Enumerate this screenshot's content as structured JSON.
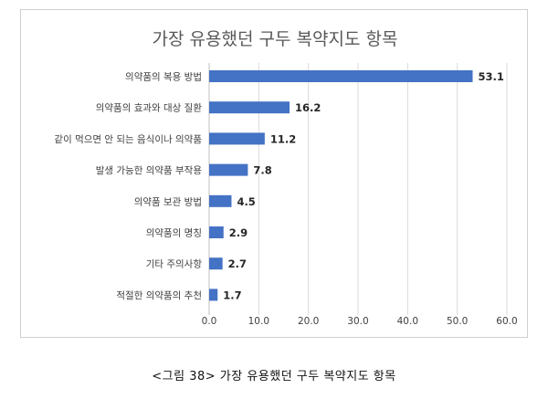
{
  "chart_data": {
    "type": "bar",
    "orientation": "horizontal",
    "title": "가장 유용했던 구두 복약지도 항목",
    "categories": [
      "의약품의 복용 방법",
      "의약품의 효과와 대상 질환",
      "같이 먹으면 안 되는 음식이나 의약품",
      "발생 가능한 의약품 부작용",
      "의약품 보관 방법",
      "의약품의 명칭",
      "기타 주의사항",
      "적절한 의약품의 추천"
    ],
    "values": [
      53.1,
      16.2,
      11.2,
      7.8,
      4.5,
      2.9,
      2.7,
      1.7
    ],
    "value_labels": [
      "53.1",
      "16.2",
      "11.2",
      "7.8",
      "4.5",
      "2.9",
      "2.7",
      "1.7"
    ],
    "xlim": [
      0,
      60
    ],
    "x_ticks": [
      0,
      10,
      20,
      30,
      40,
      50,
      60
    ],
    "x_tick_labels": [
      "0.0",
      "10.0",
      "20.0",
      "30.0",
      "40.0",
      "50.0",
      "60.0"
    ],
    "grid": "vertical",
    "bar_color": "#4472c4"
  },
  "caption": "<그림 38> 가장 유용했던 구두 복약지도 항목"
}
